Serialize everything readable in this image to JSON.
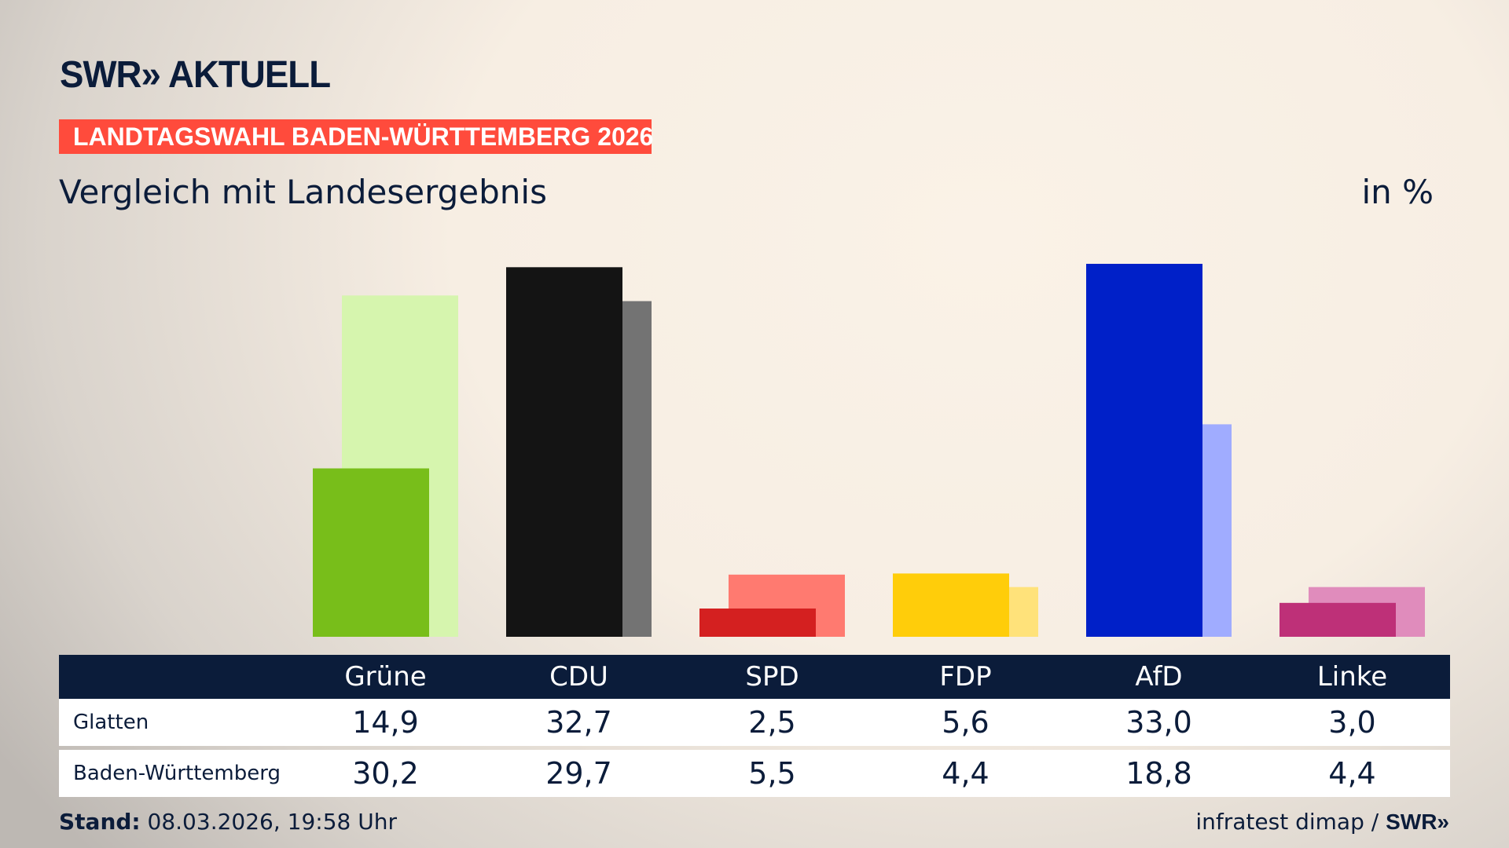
{
  "header": {
    "logo": "SWR» AKTUELL",
    "banner": "LANDTAGSWAHL BADEN-WÜRTTEMBERG 2026",
    "subtitle": "Vergleich mit Landesergebnis",
    "unit": "in %"
  },
  "chart_data": {
    "type": "bar",
    "categories": [
      "Grüne",
      "CDU",
      "SPD",
      "FDP",
      "AfD",
      "Linke"
    ],
    "series": [
      {
        "name": "Glatten",
        "values": [
          14.9,
          32.7,
          2.5,
          5.6,
          33.0,
          3.0
        ],
        "colors": [
          "#78be1a",
          "#141414",
          "#d42020",
          "#ffcd0a",
          "#0020c8",
          "#be3078"
        ]
      },
      {
        "name": "Baden-Württemberg",
        "values": [
          30.2,
          29.7,
          5.5,
          4.4,
          18.8,
          4.4
        ],
        "colors": [
          "#d6f5ae",
          "#737373",
          "#ff7a70",
          "#ffe27a",
          "#a0acff",
          "#e08cbc"
        ]
      }
    ],
    "display": {
      "Glatten": [
        "14,9",
        "32,7",
        "2,5",
        "5,6",
        "33,0",
        "3,0"
      ],
      "Baden-Württemberg": [
        "30,2",
        "29,7",
        "5,5",
        "4,4",
        "18,8",
        "4,4"
      ]
    },
    "ylim": [
      0,
      33
    ],
    "grid": false
  },
  "footer": {
    "stand_label": "Stand:",
    "stand_value": "08.03.2026, 19:58 Uhr",
    "source": "infratest dimap / ",
    "source_logo": "SWR»"
  }
}
